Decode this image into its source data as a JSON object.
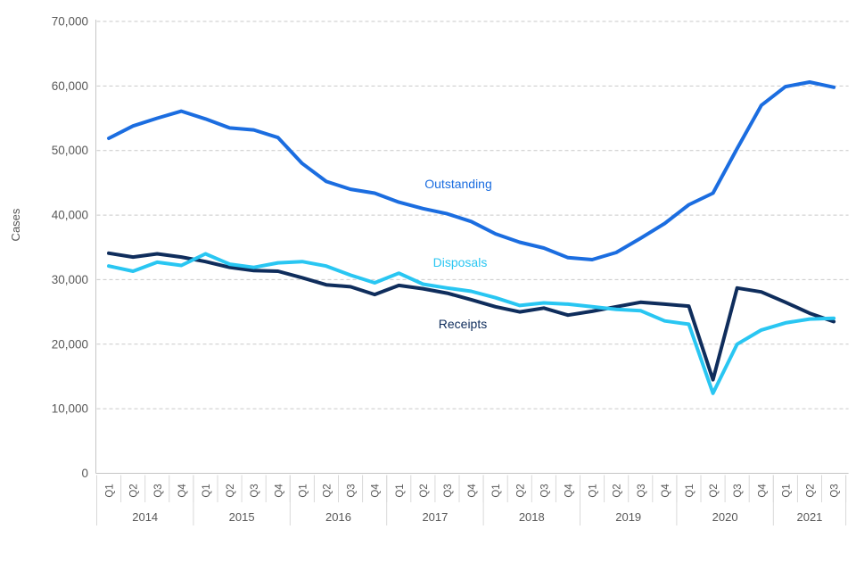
{
  "chart_data": {
    "type": "line",
    "title": "",
    "ylabel": "Cases",
    "xlabel": "",
    "ylim": [
      0,
      70000
    ],
    "ytick_step": 10000,
    "ytick_labels": [
      "0",
      "10,000",
      "20,000",
      "30,000",
      "40,000",
      "50,000",
      "60,000",
      "70,000"
    ],
    "grid": "horizontal-dashed",
    "legend_position": "inline-labels-on-chart",
    "quarter_labels": [
      "Q1",
      "Q2",
      "Q3",
      "Q4",
      "Q1",
      "Q2",
      "Q3",
      "Q4",
      "Q1",
      "Q2",
      "Q3",
      "Q4",
      "Q1",
      "Q2",
      "Q3",
      "Q4",
      "Q1",
      "Q2",
      "Q3",
      "Q4",
      "Q1",
      "Q2",
      "Q3",
      "Q4",
      "Q1",
      "Q2",
      "Q3",
      "Q4",
      "Q1",
      "Q2",
      "Q3"
    ],
    "year_groups": [
      {
        "year": "2014",
        "quarters": 4
      },
      {
        "year": "2015",
        "quarters": 4
      },
      {
        "year": "2016",
        "quarters": 4
      },
      {
        "year": "2017",
        "quarters": 4
      },
      {
        "year": "2018",
        "quarters": 4
      },
      {
        "year": "2019",
        "quarters": 4
      },
      {
        "year": "2020",
        "quarters": 4
      },
      {
        "year": "2021",
        "quarters": 3
      }
    ],
    "series": [
      {
        "name": "Outstanding",
        "color": "#1b6de0",
        "values": [
          51900,
          53800,
          55000,
          56100,
          54900,
          53500,
          53200,
          52000,
          48000,
          45200,
          44000,
          43400,
          42000,
          41000,
          40200,
          39000,
          37100,
          35800,
          34900,
          33400,
          33100,
          34200,
          36400,
          38700,
          41600,
          43400,
          50300,
          57000,
          59900,
          60600,
          59800
        ]
      },
      {
        "name": "Disposals",
        "color": "#29c6f2",
        "values": [
          32100,
          31300,
          32700,
          32200,
          34000,
          32400,
          31900,
          32600,
          32800,
          32100,
          30700,
          29500,
          31000,
          29300,
          28700,
          28200,
          27200,
          26000,
          26400,
          26200,
          25800,
          25400,
          25200,
          23600,
          23100,
          12400,
          20000,
          22200,
          23300,
          23900,
          24000
        ]
      },
      {
        "name": "Receipts",
        "color": "#0f2d5c",
        "values": [
          34100,
          33500,
          34000,
          33500,
          32800,
          31900,
          31400,
          31300,
          30300,
          29200,
          28900,
          27700,
          29100,
          28600,
          27900,
          26900,
          25800,
          25000,
          25600,
          24500,
          25100,
          25800,
          26500,
          26200,
          25900,
          14500,
          28700,
          28100,
          26500,
          24800,
          23500
        ]
      }
    ],
    "colors": {
      "grid": "#c9c9c9",
      "axis": "#c6c6c6",
      "tick": "#d9d9d9",
      "text": "#595959"
    }
  }
}
